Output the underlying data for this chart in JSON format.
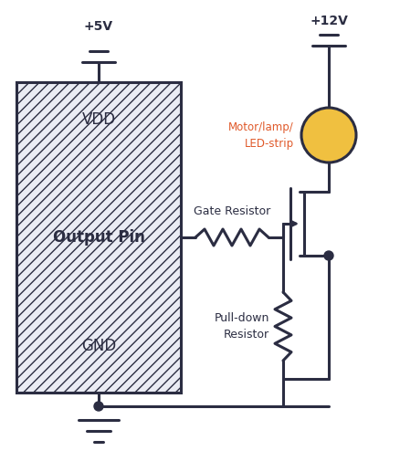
{
  "bg_color": "#ffffff",
  "line_color": "#2b2d42",
  "line_width": 2.2,
  "chip_color": "#eaecf4",
  "chip_hatch": "///",
  "vdd_label": "VDD",
  "output_label": "Output Pin",
  "gnd_label": "GND",
  "v5_label": "+5V",
  "v12_label": "+12V",
  "gate_res_label": "Gate Resistor",
  "pulldown_label": "Pull-down\nResistor",
  "motor_label": "Motor/lamp/\nLED-strip",
  "motor_color": "#f0c040",
  "motor_label_color": "#e05a2b",
  "font_color": "#2b2d42"
}
